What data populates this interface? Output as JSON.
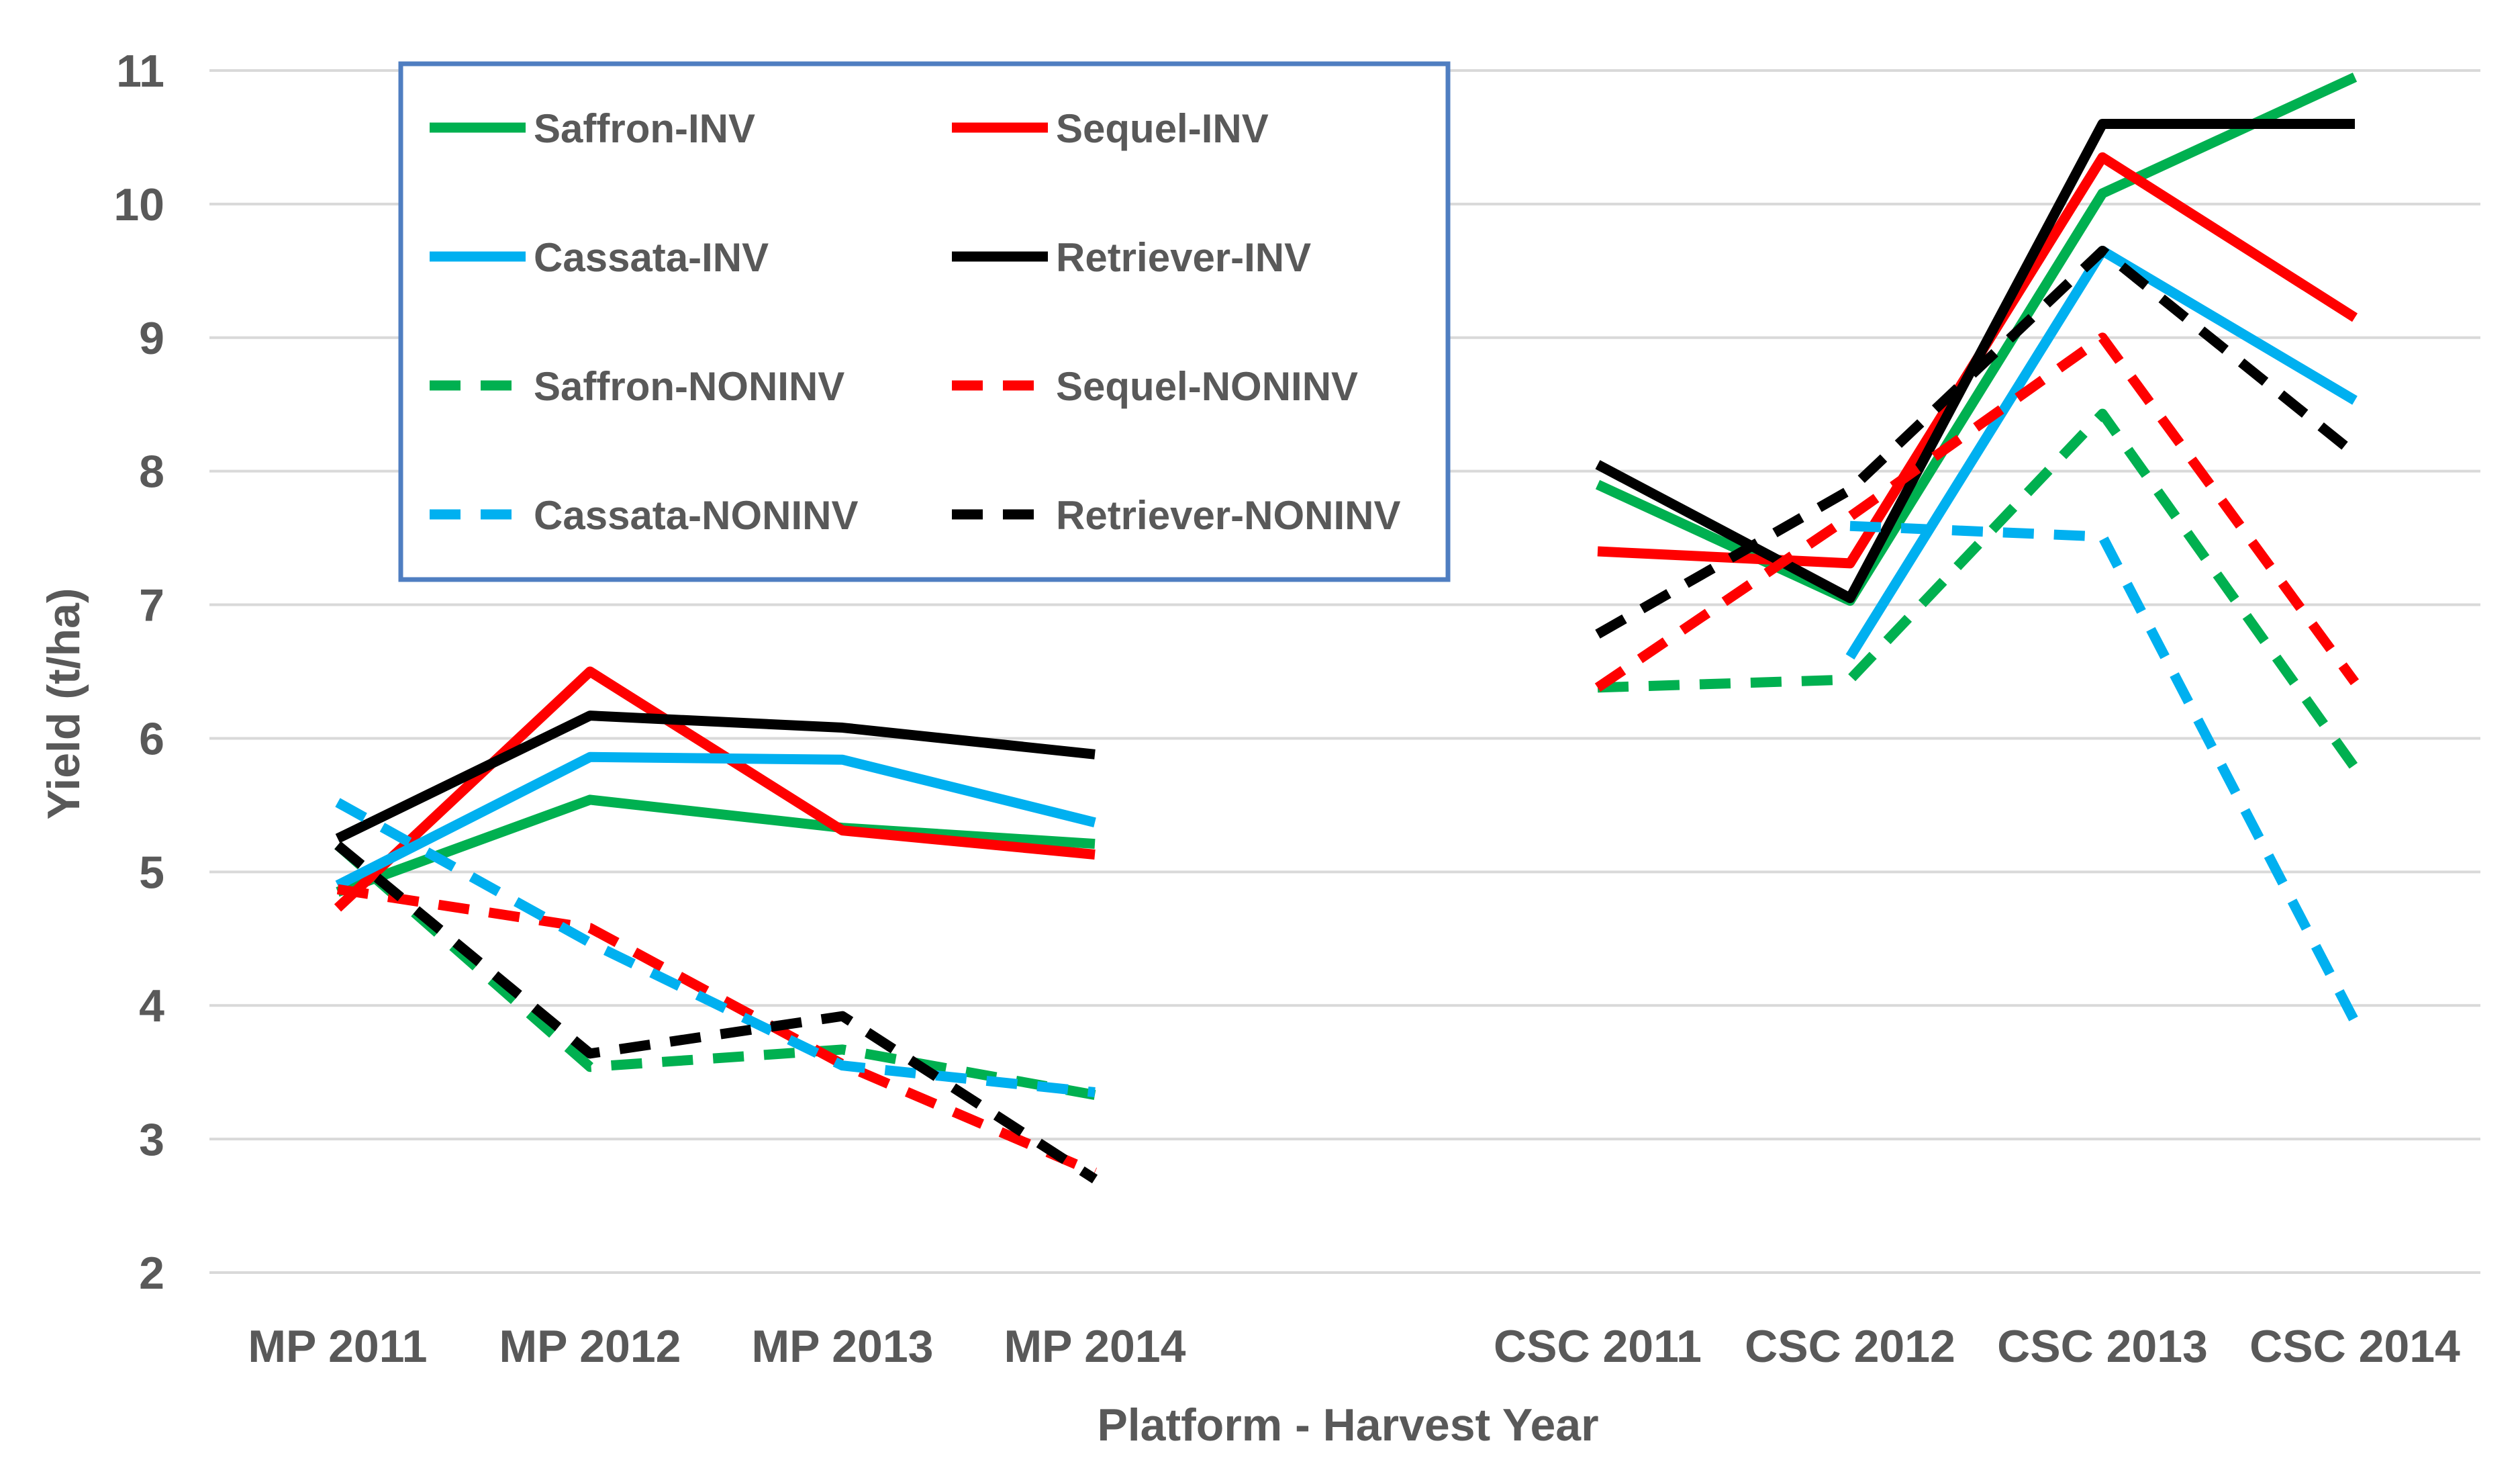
{
  "chart_data": {
    "type": "line",
    "title": "",
    "xlabel": "Platform - Harvest Year",
    "ylabel": "Yield (t/ha)",
    "ylim": [
      2,
      11
    ],
    "yticks": [
      "2",
      "3",
      "4",
      "5",
      "6",
      "7",
      "8",
      "9",
      "10",
      "11"
    ],
    "grid": true,
    "legend_position": "top-left",
    "groups": [
      {
        "name": "MP",
        "categories": [
          "MP 2011",
          "MP 2012",
          "MP 2013",
          "MP 2014"
        ]
      },
      {
        "name": "CSC",
        "categories": [
          "CSC 2011",
          "CSC 2012",
          "CSC 2013",
          "CSC 2014"
        ]
      }
    ],
    "series": [
      {
        "name": "Saffron-INV",
        "color": "#00b050",
        "dash": false,
        "mp": [
          4.85,
          5.54,
          5.33,
          5.21
        ],
        "csc": [
          7.9,
          7.03,
          10.08,
          10.95
        ]
      },
      {
        "name": "Sequel-INV",
        "color": "#ff0000",
        "dash": false,
        "mp": [
          4.73,
          6.5,
          5.31,
          5.13
        ],
        "csc": [
          7.4,
          7.31,
          10.35,
          9.15
        ]
      },
      {
        "name": "Cassata-INV",
        "color": "#00b0f0",
        "dash": false,
        "mp": [
          4.9,
          5.86,
          5.84,
          5.37
        ],
        "csc": [
          null,
          6.61,
          9.65,
          8.53
        ]
      },
      {
        "name": "Retriever-INV",
        "color": "#000000",
        "dash": false,
        "mp": [
          5.25,
          6.17,
          6.08,
          5.88
        ],
        "csc": [
          8.05,
          7.05,
          10.6,
          10.6
        ]
      },
      {
        "name": "Saffron-NONINV",
        "color": "#00b050",
        "dash": true,
        "mp": [
          5.2,
          3.54,
          3.67,
          3.33
        ],
        "csc": [
          6.38,
          6.44,
          8.43,
          5.78
        ]
      },
      {
        "name": "Sequel-NONINV",
        "color": "#ff0000",
        "dash": true,
        "mp": [
          4.87,
          4.58,
          3.56,
          2.75
        ],
        "csc": [
          6.38,
          7.66,
          9.0,
          6.42
        ]
      },
      {
        "name": "Cassata-NONINV",
        "color": "#00b0f0",
        "dash": true,
        "mp": [
          5.52,
          4.47,
          3.55,
          3.35
        ],
        "csc": [
          null,
          7.59,
          7.51,
          3.88
        ]
      },
      {
        "name": "Retriever-NONINV",
        "color": "#000000",
        "dash": true,
        "mp": [
          5.2,
          3.64,
          3.92,
          2.7
        ],
        "csc": [
          6.78,
          7.86,
          9.65,
          8.13
        ]
      }
    ]
  }
}
